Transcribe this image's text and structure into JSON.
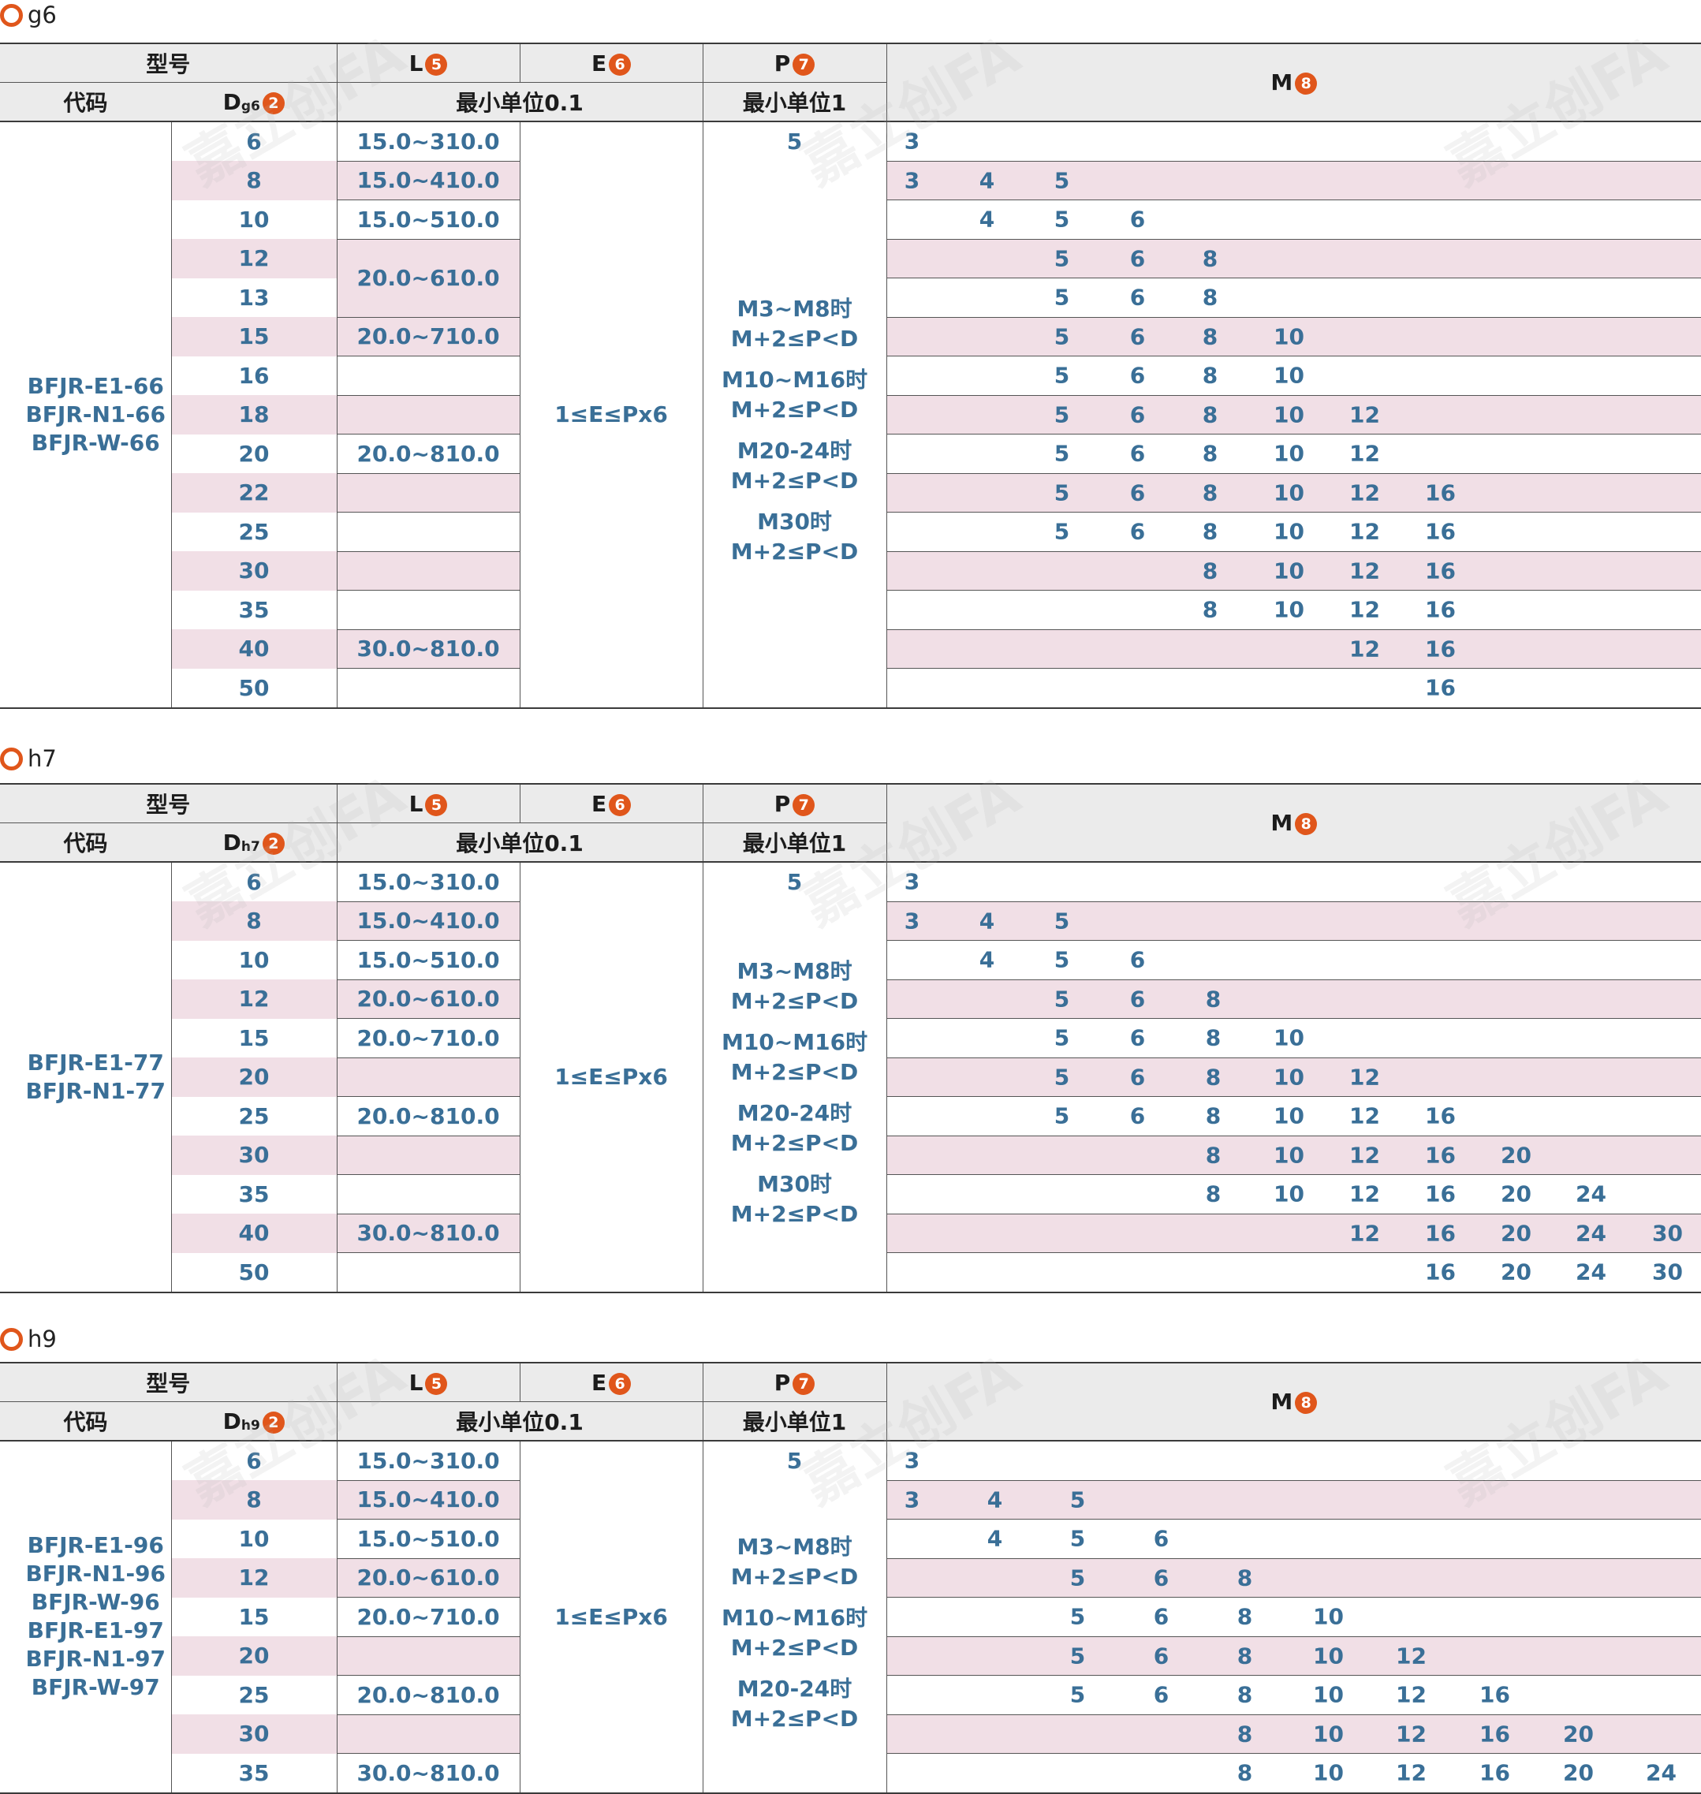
{
  "watermark": "嘉立创FA",
  "header": {
    "model": "型号",
    "code": "代码",
    "d_prefix": "D",
    "L": "L",
    "E": "E",
    "P": "P",
    "M": "M",
    "unit01": "最小单位0.1",
    "unit1": "最小单位1",
    "badges": {
      "d": "2",
      "l": "5",
      "e": "6",
      "p": "7",
      "m": "8"
    }
  },
  "sections": [
    {
      "title": "g6",
      "d_sub": "g6",
      "codes": [
        "BFJR-E1-66",
        "BFJR-N1-66",
        "BFJR-W-66"
      ],
      "e_value": "1≤E≤Px6",
      "p_first": "5",
      "p_notes": [
        {
          "cond": "M3~M8时",
          "rule": "M+2≤P<D"
        },
        {
          "cond": "M10~M16时",
          "rule": "M+2≤P<D"
        },
        {
          "cond": "M20-24时",
          "rule": "M+2≤P<D"
        },
        {
          "cond": "M30时",
          "rule": "M+2≤P<D"
        }
      ],
      "rows": [
        {
          "d": "6",
          "l": "15.0~310.0",
          "m": [
            "3"
          ]
        },
        {
          "d": "8",
          "l": "15.0~410.0",
          "m": [
            "3",
            "4",
            "5"
          ]
        },
        {
          "d": "10",
          "l": "15.0~510.0",
          "m": [
            "4",
            "5",
            "6"
          ]
        },
        {
          "d": "12",
          "l": "20.0~610.0",
          "m": [
            "5",
            "6",
            "8"
          ]
        },
        {
          "d": "13",
          "l": "",
          "m": [
            "5",
            "6",
            "8"
          ]
        },
        {
          "d": "15",
          "l": "20.0~710.0",
          "m": [
            "5",
            "6",
            "8",
            "10"
          ]
        },
        {
          "d": "16",
          "l": "",
          "m": [
            "5",
            "6",
            "8",
            "10"
          ]
        },
        {
          "d": "18",
          "l": "",
          "m": [
            "5",
            "6",
            "8",
            "10",
            "12"
          ]
        },
        {
          "d": "20",
          "l": "20.0~810.0",
          "m": [
            "5",
            "6",
            "8",
            "10",
            "12"
          ]
        },
        {
          "d": "22",
          "l": "",
          "m": [
            "5",
            "6",
            "8",
            "10",
            "12",
            "16"
          ]
        },
        {
          "d": "25",
          "l": "",
          "m": [
            "5",
            "6",
            "8",
            "10",
            "12",
            "16"
          ]
        },
        {
          "d": "30",
          "l": "",
          "m": [
            "8",
            "10",
            "12",
            "16"
          ]
        },
        {
          "d": "35",
          "l": "",
          "m": [
            "8",
            "10",
            "12",
            "16"
          ]
        },
        {
          "d": "40",
          "l": "30.0~810.0",
          "m": [
            "12",
            "16"
          ]
        },
        {
          "d": "50",
          "l": "",
          "m": [
            "16"
          ]
        }
      ]
    },
    {
      "title": "h7",
      "d_sub": "h7",
      "codes": [
        "BFJR-E1-77",
        "BFJR-N1-77"
      ],
      "e_value": "1≤E≤Px6",
      "p_first": "5",
      "p_notes": [
        {
          "cond": "M3~M8时",
          "rule": "M+2≤P<D"
        },
        {
          "cond": "M10~M16时",
          "rule": "M+2≤P<D"
        },
        {
          "cond": "M20-24时",
          "rule": "M+2≤P<D"
        },
        {
          "cond": "M30时",
          "rule": "M+2≤P<D"
        }
      ],
      "rows": [
        {
          "d": "6",
          "l": "15.0~310.0",
          "m": [
            "3"
          ]
        },
        {
          "d": "8",
          "l": "15.0~410.0",
          "m": [
            "3",
            "4",
            "5"
          ]
        },
        {
          "d": "10",
          "l": "15.0~510.0",
          "m": [
            "4",
            "5",
            "6"
          ]
        },
        {
          "d": "12",
          "l": "20.0~610.0",
          "m": [
            "5",
            "6",
            "8"
          ]
        },
        {
          "d": "15",
          "l": "20.0~710.0",
          "m": [
            "5",
            "6",
            "8",
            "10"
          ]
        },
        {
          "d": "20",
          "l": "",
          "m": [
            "5",
            "6",
            "8",
            "10",
            "12"
          ]
        },
        {
          "d": "25",
          "l": "20.0~810.0",
          "m": [
            "5",
            "6",
            "8",
            "10",
            "12",
            "16"
          ]
        },
        {
          "d": "30",
          "l": "",
          "m": [
            "8",
            "10",
            "12",
            "16",
            "20"
          ]
        },
        {
          "d": "35",
          "l": "",
          "m": [
            "8",
            "10",
            "12",
            "16",
            "20",
            "24"
          ]
        },
        {
          "d": "40",
          "l": "30.0~810.0",
          "m": [
            "12",
            "16",
            "20",
            "24",
            "30"
          ]
        },
        {
          "d": "50",
          "l": "",
          "m": [
            "16",
            "20",
            "24",
            "30"
          ]
        }
      ]
    },
    {
      "title": "h9",
      "d_sub": "h9",
      "codes": [
        "BFJR-E1-96",
        "BFJR-N1-96",
        "BFJR-W-96",
        "BFJR-E1-97",
        "BFJR-N1-97",
        "BFJR-W-97"
      ],
      "e_value": "1≤E≤Px6",
      "p_first": "5",
      "p_notes": [
        {
          "cond": "M3~M8时",
          "rule": "M+2≤P<D"
        },
        {
          "cond": "M10~M16时",
          "rule": "M+2≤P<D"
        },
        {
          "cond": "M20-24时",
          "rule": "M+2≤P<D"
        }
      ],
      "rows": [
        {
          "d": "6",
          "l": "15.0~310.0",
          "m": [
            "3"
          ]
        },
        {
          "d": "8",
          "l": "15.0~410.0",
          "m": [
            "3",
            "4",
            "5"
          ]
        },
        {
          "d": "10",
          "l": "15.0~510.0",
          "m": [
            "4",
            "5",
            "6"
          ]
        },
        {
          "d": "12",
          "l": "20.0~610.0",
          "m": [
            "5",
            "6",
            "8"
          ]
        },
        {
          "d": "15",
          "l": "20.0~710.0",
          "m": [
            "5",
            "6",
            "8",
            "10"
          ]
        },
        {
          "d": "20",
          "l": "",
          "m": [
            "5",
            "6",
            "8",
            "10",
            "12"
          ]
        },
        {
          "d": "25",
          "l": "20.0~810.0",
          "m": [
            "5",
            "6",
            "8",
            "10",
            "12",
            "16"
          ]
        },
        {
          "d": "30",
          "l": "",
          "m": [
            "8",
            "10",
            "12",
            "16",
            "20"
          ]
        },
        {
          "d": "35",
          "l": "30.0~810.0",
          "m": [
            "8",
            "10",
            "12",
            "16",
            "20",
            "24"
          ]
        }
      ]
    }
  ]
}
